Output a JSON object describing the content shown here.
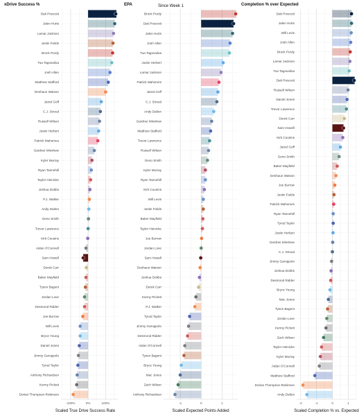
{
  "figure_subtitle": "Since Week 1",
  "chart_data": [
    {
      "type": "bar",
      "title": "xDrive Success %",
      "xlabel": "Scaled True Drive Success Rate",
      "xlim": [
        -1.55,
        1.7
      ],
      "xticks": [
        -1,
        0,
        1
      ],
      "xtick_labels": [
        "-100%",
        "0%",
        "100%"
      ],
      "categories": [
        "Dak Prescott",
        "Jalen Hurts",
        "Lamar Jackson",
        "Justin Fields",
        "Brock Purdy",
        "Tua Tagovailoa",
        "Josh Allen",
        "Matthew Stafford",
        "Deshaun Watson",
        "Jared Goff",
        "C.J. Stroud",
        "Russell Wilson",
        "Justin Herbert",
        "Patrick Mahomes",
        "Gardner Minshew",
        "Kyler Murray",
        "Ryan Tannehill",
        "Taylor Heinicke",
        "Joshua Dobbs",
        "P.J. Walker",
        "Andy Dalton",
        "Geno Smith",
        "Trevor Lawrence",
        "Kirk Cousins",
        "Aidan O'Connell",
        "Sam Howell",
        "Derek Carr",
        "Baker Mayfield",
        "Tyson Bagent",
        "Jordan Love",
        "Desmond Ridder",
        "Joe Burrow",
        "Will Levis",
        "Bryce Young",
        "Daniel Jones",
        "Jimmy Garoppolo",
        "Tyrod Taylor",
        "Anthony Richardson",
        "Kenny Pickett",
        "Dorian Thompson-Robinson"
      ],
      "values": [
        1.62,
        1.52,
        1.45,
        1.42,
        1.4,
        1.35,
        1.25,
        1.15,
        1.0,
        0.75,
        0.7,
        0.65,
        0.6,
        0.55,
        0.35,
        0.22,
        0.18,
        0.14,
        0.1,
        0.07,
        0.04,
        0.02,
        0.0,
        -0.02,
        -0.12,
        -0.28,
        -0.1,
        -0.12,
        -0.15,
        -0.2,
        -0.2,
        -0.3,
        -0.45,
        -0.45,
        -0.5,
        -0.55,
        -0.58,
        -0.62,
        -0.65,
        -0.85
      ],
      "highlight": "Sam Howell"
    },
    {
      "type": "bar",
      "title": "EPA",
      "xlabel": "Scaled Expected Points Added",
      "xlim": [
        -1.8,
        1.75
      ],
      "xticks": [
        -1,
        0,
        1
      ],
      "xtick_labels": [
        "-1",
        "0",
        "1"
      ],
      "categories": [
        "Brock Purdy",
        "Dak Prescott",
        "Jalen Hurts",
        "Josh Allen",
        "Tua Tagovailoa",
        "Justin Herbert",
        "Lamar Jackson",
        "Patrick Mahomes",
        "Jared Goff",
        "C.J. Stroud",
        "Andy Dalton",
        "Gardner Minshew",
        "Matthew Stafford",
        "Trevor Lawrence",
        "Russell Wilson",
        "Geno Smith",
        "Kyler Murray",
        "Ryan Tannehill",
        "Kirk Cousins",
        "Will Levis",
        "Justin Fields",
        "Baker Mayfield",
        "Taylor Heinicke",
        "Joe Burrow",
        "Jordan Love",
        "Sam Howell",
        "Deshaun Watson",
        "Joshua Dobbs",
        "Derek Carr",
        "Kenny Pickett",
        "P.J. Walker",
        "Tyrod Taylor",
        "Jimmy Garoppolo",
        "Desmond Ridder",
        "Aidan O'Connell",
        "Tyson Bagent",
        "Bryce Young",
        "Mac Jones",
        "Zach Wilson",
        "Anthony Richardson"
      ],
      "values": [
        1.68,
        1.55,
        1.5,
        1.38,
        1.35,
        1.05,
        0.95,
        0.85,
        0.8,
        0.75,
        0.6,
        0.5,
        0.45,
        0.4,
        0.35,
        0.3,
        0.2,
        0.2,
        0.15,
        0.1,
        0.1,
        0.08,
        0.06,
        0.02,
        0.0,
        -0.02,
        -0.05,
        -0.08,
        -0.12,
        -0.25,
        -0.3,
        -0.55,
        -0.6,
        -0.65,
        -0.78,
        -0.82,
        -0.95,
        -1.0,
        -1.1,
        -1.25
      ],
      "highlight": "Dak Prescott"
    },
    {
      "type": "bar",
      "title": "Completion % over Expected",
      "xlabel": "Scaled Completion % vs. Expected",
      "xlim": [
        -2.25,
        1.5
      ],
      "xticks": [
        -2,
        -1,
        0,
        1
      ],
      "xtick_labels": [
        "-2",
        "-1",
        "0",
        "1"
      ],
      "categories": [
        "Dak Prescott",
        "Jalen Hurts",
        "Will Levis",
        "Josh Allen",
        "Brock Purdy",
        "Lamar Jackson",
        "Tua Tagovailoa",
        "Dak Prescott",
        "Russell Wilson",
        "Daniel Jones",
        "Trevor Lawrence",
        "Derek Carr",
        "Sam Howell",
        "Kirk Cousins",
        "Jared Goff",
        "Geno Smith",
        "Baker Mayfield",
        "Deshaun Watson",
        "Joe Burrow",
        "Justin Fields",
        "Patrick Mahomes",
        "Ryan Tannehill",
        "Tyrod Taylor",
        "Justin Herbert",
        "Gardner Minshew",
        "C.J. Stroud",
        "Jimmy Garoppolo",
        "Joshua Dobbs",
        "Desmond Ridder",
        "Bryce Young",
        "Mac Jones",
        "Tyson Bagent",
        "Jordan Love",
        "Kenny Pickett",
        "Zach Wilson",
        "Taylor Heinicke",
        "Kyler Murray",
        "Aidan O'Connell",
        "Matthew Stafford",
        "Dorian Thompson-Robinson",
        "Andy Dalton"
      ],
      "values": [
        1.2,
        1.2,
        1.18,
        1.15,
        1.12,
        1.1,
        1.05,
        1.4,
        0.98,
        0.92,
        0.88,
        0.75,
        0.7,
        0.65,
        0.5,
        0.42,
        0.3,
        0.22,
        0.15,
        0.1,
        0.08,
        0.05,
        0.05,
        0.04,
        0.02,
        0.0,
        -0.05,
        -0.08,
        -0.1,
        -0.15,
        -0.25,
        -0.3,
        -0.35,
        -0.4,
        -0.55,
        -0.68,
        -0.75,
        -0.82,
        -1.1,
        -1.85,
        -1.6
      ],
      "highlight": "Dak Prescott"
    }
  ],
  "team_colors": {
    "DAL": "#0a2240",
    "PHI": "#2f6a73",
    "BAL": "#8d7fb6",
    "CHI": "#b5623a",
    "SF": "#c23a32",
    "MIA": "#6fbec5",
    "BUF": "#5b7fcf",
    "LA": "#4a68b5",
    "CLE": "#f08a52",
    "DET": "#5fa8e0",
    "HOU": "#4f6d8f",
    "DEN": "#6f83a6",
    "LAC": "#62a9e8",
    "KC": "#e54060",
    "IND": "#6682a8",
    "ARI": "#b05060",
    "TEN": "#6c8fc4",
    "ATL": "#d15a5a",
    "MIN": "#8b6fb5",
    "NO": "#c9ba88",
    "SEA": "#6a8a80",
    "JAX": "#4a8d94",
    "LV": "#7a7d82",
    "WAS": "#5a1414",
    "NYJ": "#3f7a5a",
    "TB": "#c85c5c",
    "GB": "#5d8a6a",
    "CIN": "#f07a40",
    "CAR": "#6fb8e8",
    "NYG": "#4f64b0",
    "NE": "#4d6a92",
    "PIT": "#6a6a6a"
  }
}
